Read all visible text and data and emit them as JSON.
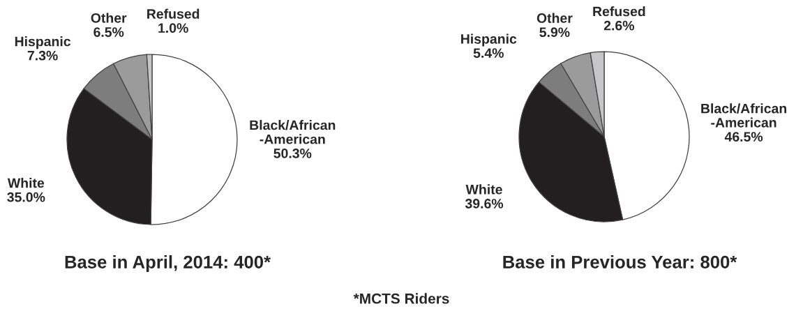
{
  "chart_data": [
    {
      "type": "pie",
      "title": "Base in April, 2014: 400*",
      "categories": [
        "Black/African\n-American",
        "White",
        "Hispanic",
        "Other",
        "Refused"
      ],
      "values": [
        50.3,
        35.0,
        7.3,
        6.5,
        1.0
      ],
      "value_labels": [
        "50.3%",
        "35.0%",
        "7.3%",
        "6.5%",
        "1.0%"
      ],
      "colors": [
        "#ffffff",
        "#231f20",
        "#7d7d7d",
        "#9b9b9b",
        "#c6c6c8"
      ],
      "annotations": [
        "*MCTS Riders"
      ]
    },
    {
      "type": "pie",
      "title": "Base in Previous Year: 800*",
      "categories": [
        "Black/African\n-American",
        "White",
        "Hispanic",
        "Other",
        "Refused"
      ],
      "values": [
        46.5,
        39.6,
        5.4,
        5.9,
        2.6
      ],
      "value_labels": [
        "46.5%",
        "39.6%",
        "5.4%",
        "5.9%",
        "2.6%"
      ],
      "colors": [
        "#ffffff",
        "#231f20",
        "#7d7d7d",
        "#9b9b9b",
        "#c6c6c8"
      ]
    }
  ]
}
